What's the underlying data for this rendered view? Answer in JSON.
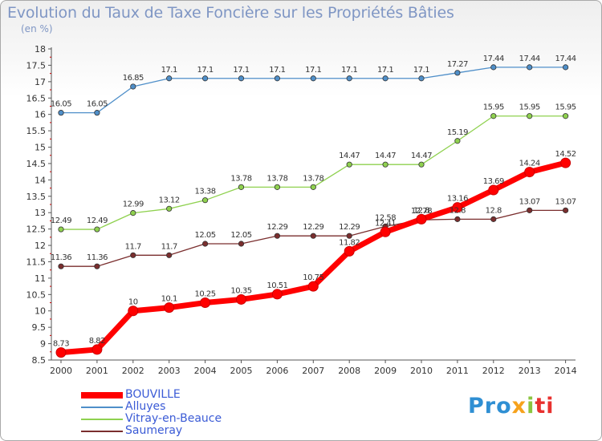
{
  "chart_data": {
    "type": "line",
    "title": "Evolution du Taux de Taxe Foncière sur les Propriétés Bâties",
    "subtitle": "(en %)",
    "x": [
      "2000",
      "2001",
      "2002",
      "2003",
      "2004",
      "2005",
      "2006",
      "2007",
      "2008",
      "2009",
      "2010",
      "2011",
      "2012",
      "2013",
      "2014"
    ],
    "ylim": [
      8.5,
      18
    ],
    "yticks": [
      "8.5",
      "9",
      "9.5",
      "10",
      "10.5",
      "11",
      "11.5",
      "12",
      "12.5",
      "13",
      "13.5",
      "14",
      "14.5",
      "15",
      "15.5",
      "16",
      "16.5",
      "17",
      "17.5",
      "18"
    ],
    "grid": false,
    "legend_position": "bottom-left",
    "series": [
      {
        "name": "BOUVILLE",
        "color": "#ff0000",
        "values": [
          8.73,
          8.82,
          10,
          10.1,
          10.25,
          10.35,
          10.51,
          10.75,
          11.82,
          12.41,
          12.8,
          13.16,
          13.69,
          14.24,
          14.52
        ],
        "labels": [
          "8.73",
          "8.82",
          "10",
          "10.1",
          "10.25",
          "10.35",
          "10.51",
          "10.75",
          "11.82",
          "12.41",
          "12.8",
          "13.16",
          "13.69",
          "14.24",
          "14.52"
        ]
      },
      {
        "name": "Alluyes",
        "color": "#4f8fc9",
        "values": [
          16.05,
          16.05,
          16.85,
          17.1,
          17.1,
          17.1,
          17.1,
          17.1,
          17.1,
          17.1,
          17.1,
          17.27,
          17.44,
          17.44,
          17.44
        ],
        "labels": [
          "16.05",
          "16.05",
          "16.85",
          "17.1",
          "17.1",
          "17.1",
          "17.1",
          "17.1",
          "17.1",
          "17.1",
          "17.1",
          "17.27",
          "17.44",
          "17.44",
          "17.44"
        ]
      },
      {
        "name": "Vitray-en-Beauce",
        "color": "#8fd14f",
        "values": [
          12.49,
          12.49,
          12.99,
          13.12,
          13.38,
          13.78,
          13.78,
          13.78,
          14.47,
          14.47,
          14.47,
          15.19,
          15.95,
          15.95,
          15.95
        ],
        "labels": [
          "12.49",
          "12.49",
          "12.99",
          "13.12",
          "13.38",
          "13.78",
          "13.78",
          "13.78",
          "14.47",
          "14.47",
          "14.47",
          "15.19",
          "15.95",
          "15.95",
          "15.95"
        ]
      },
      {
        "name": "Saumeray",
        "color": "#7a2e2e",
        "values": [
          11.36,
          11.36,
          11.7,
          11.7,
          12.05,
          12.05,
          12.29,
          12.29,
          12.29,
          12.58,
          12.78,
          12.8,
          12.8,
          13.07,
          13.07
        ],
        "labels": [
          "11.36",
          "11.36",
          "11.7",
          "11.7",
          "12.05",
          "12.05",
          "12.29",
          "12.29",
          "12.29",
          "12.58",
          "12.78",
          "12.8",
          "12.8",
          "13.07",
          "13.07"
        ]
      }
    ]
  },
  "logo": {
    "t1": "Pro",
    "t2": "x",
    "t3": "i",
    "t4": "ti"
  }
}
